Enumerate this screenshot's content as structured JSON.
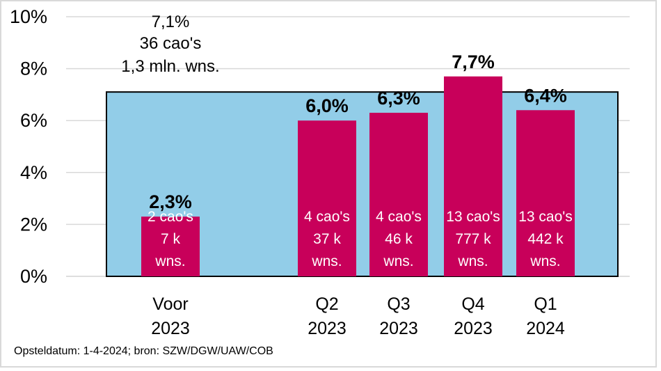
{
  "chart_data": {
    "type": "bar",
    "categories": [
      [
        "Voor",
        "2023"
      ],
      [
        "Q2",
        "2023"
      ],
      [
        "Q3",
        "2023"
      ],
      [
        "Q4",
        "2023"
      ],
      [
        "Q1",
        "2024"
      ]
    ],
    "values": [
      2.3,
      6.0,
      6.3,
      7.7,
      6.4
    ],
    "value_labels": [
      "2,3%",
      "6,0%",
      "6,3%",
      "7,7%",
      "6,4%"
    ],
    "inner_labels": [
      [
        "2 cao's",
        "7 k",
        "wns."
      ],
      [
        "4 cao's",
        "37 k",
        "wns."
      ],
      [
        "4 cao's",
        "46 k",
        "wns."
      ],
      [
        "13 cao's",
        "777 k",
        "wns."
      ],
      [
        "13 cao's",
        "442 k",
        "wns."
      ]
    ],
    "ylim": [
      0,
      10
    ],
    "yticks": [
      "0%",
      "2%",
      "4%",
      "6%",
      "8%",
      "10%"
    ],
    "grid": true,
    "background_area": {
      "value": 7.1,
      "labels": [
        "7,1%",
        "36 cao's",
        "1,3 mln. wns."
      ],
      "color": "#92cde8"
    },
    "bar_color": "#c8005a"
  },
  "footer": "Opsteldatum: 1-4-2024; bron: SZW/DGW/UAW/COB"
}
